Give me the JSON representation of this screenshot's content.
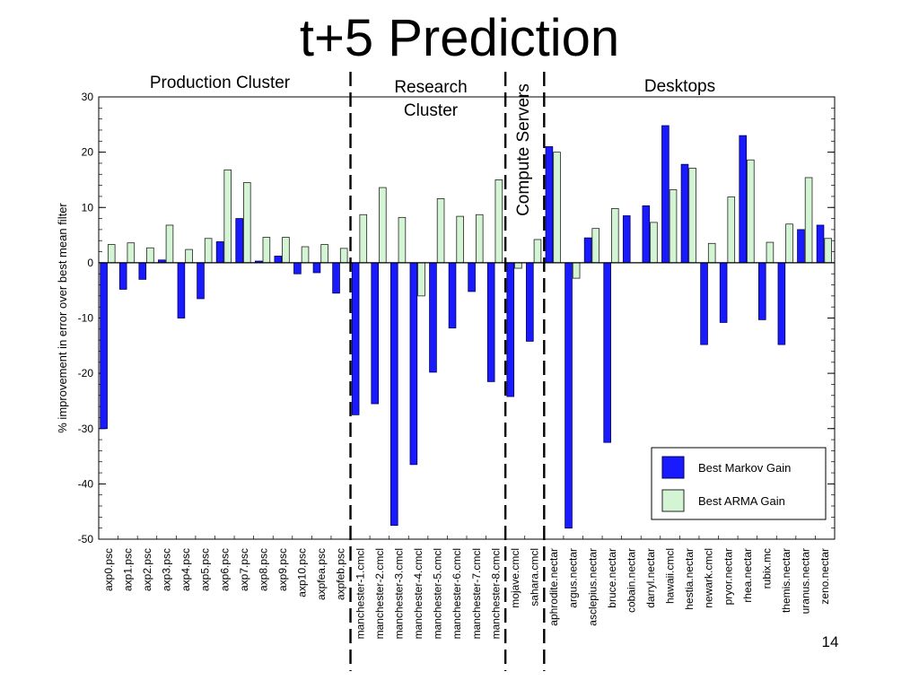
{
  "slide": {
    "title": "t+5 Prediction",
    "page_number": "14"
  },
  "regions": [
    {
      "label": "Production Cluster"
    },
    {
      "label": "Research Cluster"
    },
    {
      "label": "Compute Servers"
    },
    {
      "label": "Desktops"
    }
  ],
  "colors": {
    "markov": "#1a1aff",
    "arma": "#d4f5d4",
    "markov_edge": "#000055",
    "arma_edge": "#222222"
  },
  "chart_data": {
    "type": "bar",
    "title": "",
    "xlabel": "",
    "ylabel": "% improvement in error over best mean filter",
    "ylim": [
      -50,
      30
    ],
    "yticks": [
      -50,
      -40,
      -30,
      -20,
      -10,
      0,
      10,
      20,
      30
    ],
    "legend_position": "bottom-right",
    "categories": [
      "axp0.psc",
      "axp1.psc",
      "axp2.psc",
      "axp3.psc",
      "axp4.psc",
      "axp5.psc",
      "axp6.psc",
      "axp7.psc",
      "axp8.psc",
      "axp9.psc",
      "axp10.psc",
      "axpfea.psc",
      "axpfeb.psc",
      "manchester-1.cmcl",
      "manchester-2.cmcl",
      "manchester-3.cmcl",
      "manchester-4.cmcl",
      "manchester-5.cmcl",
      "manchester-6.cmcl",
      "manchester-7.cmcl",
      "manchester-8.cmcl",
      "mojave.cmcl",
      "sahara.cmcl",
      "aphrodite.nectar",
      "argus.nectar",
      "asclepius.nectar",
      "bruce.nectar",
      "cobain.nectar",
      "darryl.nectar",
      "hawaii.cmcl",
      "hestia.nectar",
      "newark.cmcl",
      "pryor.nectar",
      "rhea.nectar",
      "rubix.mc",
      "themis.nectar",
      "uranus.nectar",
      "zeno.nectar"
    ],
    "series": [
      {
        "name": "Best Markov Gain",
        "values": [
          -30,
          -4.8,
          -3,
          0.5,
          -10,
          -6.5,
          3.8,
          8,
          0.3,
          1.2,
          -2,
          -1.8,
          -5.5,
          -27.5,
          -25.5,
          -47.5,
          -36.5,
          -19.8,
          -11.8,
          -5.2,
          -21.5,
          -24.2,
          -14.2,
          21,
          -48,
          4.5,
          -32.5,
          8.5,
          10.3,
          24.8,
          17.8,
          -14.8,
          -10.8,
          23,
          -10.3,
          -14.8,
          6,
          6.8
        ]
      },
      {
        "name": "Best ARMA Gain",
        "values": [
          3.3,
          3.6,
          2.7,
          6.8,
          2.4,
          4.4,
          16.8,
          14.5,
          4.6,
          4.6,
          2.9,
          3.3,
          2.6,
          8.7,
          13.6,
          8.2,
          -6,
          11.6,
          8.4,
          8.7,
          15,
          -1,
          4.2,
          20,
          -2.8,
          6.2,
          9.8,
          0,
          7.3,
          13.2,
          17.1,
          3.5,
          11.9,
          18.6,
          3.7,
          7,
          15.4,
          4.4
        ]
      }
    ],
    "groups": [
      {
        "label": "Production Cluster",
        "count": 13
      },
      {
        "label": "Research Cluster",
        "count": 8
      },
      {
        "label": "Compute Servers",
        "count": 2
      },
      {
        "label": "Desktops",
        "count": 15
      }
    ]
  }
}
